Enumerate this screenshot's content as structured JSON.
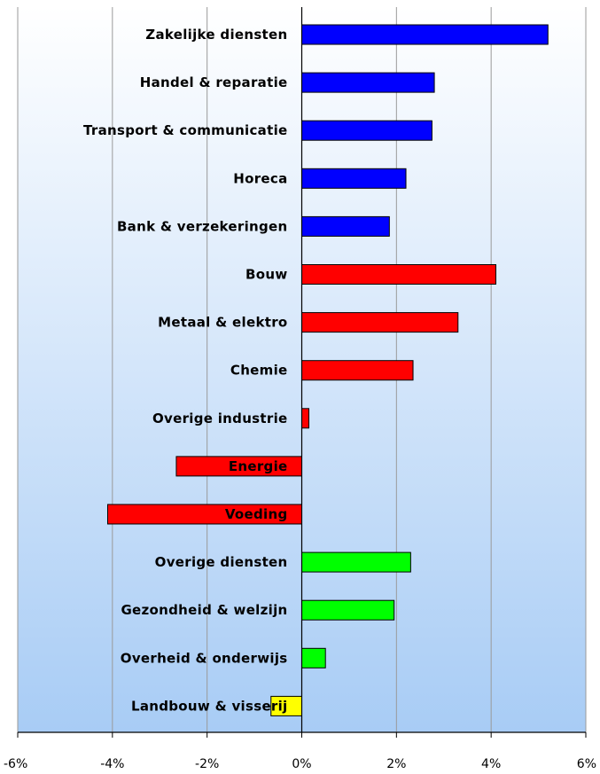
{
  "chart_data": {
    "type": "bar",
    "orientation": "horizontal",
    "title": "",
    "xlabel": "",
    "ylabel": "",
    "xlim": [
      -6,
      6
    ],
    "xticks": [
      -6,
      -4,
      -2,
      0,
      2,
      4,
      6
    ],
    "xtick_labels": [
      "-6%",
      "-4%",
      "-2%",
      "0%",
      "2%",
      "4%",
      "6%"
    ],
    "grid": "vertical",
    "legend": "none",
    "categories": [
      "Zakelijke diensten",
      "Handel & reparatie",
      "Transport & communicatie",
      "Horeca",
      "Bank & verzekeringen",
      "Bouw",
      "Metaal & elektro",
      "Chemie",
      "Overige industrie",
      "Energie",
      "Voeding",
      "Overige diensten",
      "Gezondheid & welzijn",
      "Overheid & onderwijs",
      "Landbouw & visserij"
    ],
    "values": [
      5.2,
      2.8,
      2.75,
      2.2,
      1.85,
      4.1,
      3.3,
      2.35,
      0.15,
      -2.65,
      -4.1,
      2.3,
      1.95,
      0.5,
      -0.65
    ],
    "bar_colors": [
      "#0000ff",
      "#0000ff",
      "#0000ff",
      "#0000ff",
      "#0000ff",
      "#ff0000",
      "#ff0000",
      "#ff0000",
      "#ff0000",
      "#ff0000",
      "#ff0000",
      "#00ff00",
      "#00ff00",
      "#00ff00",
      "#ffff00"
    ],
    "background_gradient": [
      "#ffffff",
      "#a8ccf5"
    ]
  }
}
